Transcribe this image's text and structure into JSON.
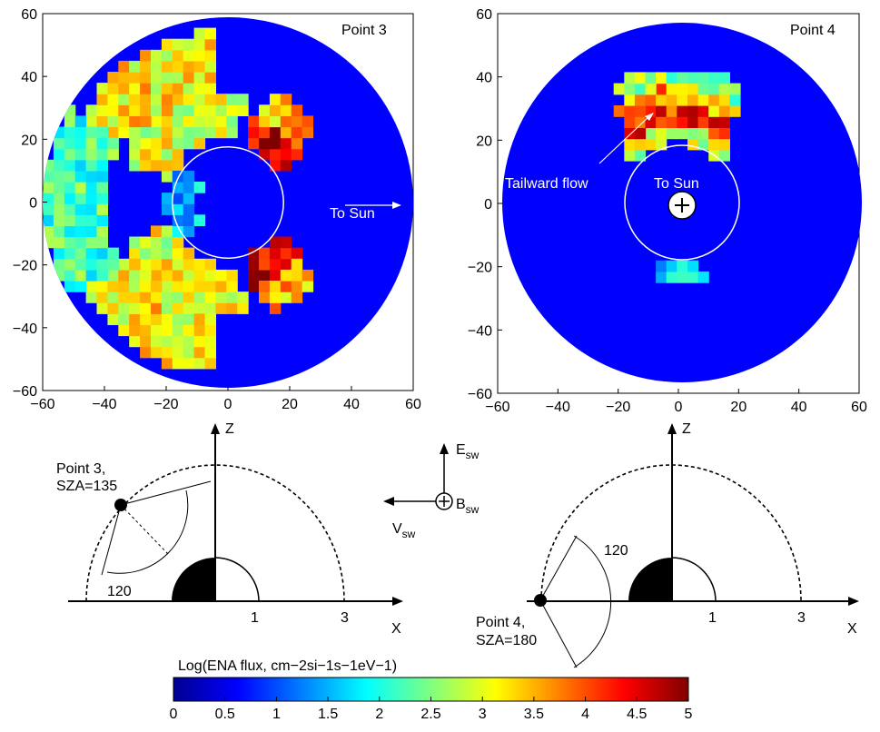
{
  "chart_data": [
    {
      "type": "heatmap",
      "panel_label": "Point 3",
      "x_ticks": [
        "−60",
        "−40",
        "−20",
        "0",
        "20",
        "40",
        "60"
      ],
      "y_ticks": [
        "60",
        "40",
        "20",
        "0",
        "−20",
        "−40",
        "−60"
      ],
      "xlim": [
        -60,
        60
      ],
      "ylim": [
        -60,
        60
      ],
      "boundary_circle_radius": 18,
      "disc_radius": 60,
      "annotations": [
        "To Sun"
      ],
      "bands": [
        {
          "r": [
            18,
            28
          ],
          "theta": [
            30,
            75
          ],
          "value": 4.5
        },
        {
          "r": [
            18,
            28
          ],
          "theta": [
            -75,
            -30
          ],
          "value": 4.5
        },
        {
          "r": [
            28,
            38
          ],
          "theta": [
            40,
            70
          ],
          "value": 3.5
        },
        {
          "r": [
            28,
            38
          ],
          "theta": [
            -70,
            -40
          ],
          "value": 3.5
        },
        {
          "r": [
            20,
            35
          ],
          "theta": [
            80,
            160
          ],
          "value": 3.0
        },
        {
          "r": [
            20,
            35
          ],
          "theta": [
            -160,
            -80
          ],
          "value": 3.0
        },
        {
          "r": [
            35,
            55
          ],
          "theta": [
            95,
            150
          ],
          "value": 3.2
        },
        {
          "r": [
            35,
            55
          ],
          "theta": [
            -150,
            -95
          ],
          "value": 3.2
        },
        {
          "r": [
            40,
            60
          ],
          "theta": [
            150,
            210
          ],
          "value": 2.2
        },
        {
          "r": [
            10,
            20
          ],
          "theta": [
            140,
            220
          ],
          "value": 1.5
        }
      ]
    },
    {
      "type": "heatmap",
      "panel_label": "Point 4",
      "x_ticks": [
        "−60",
        "−40",
        "−20",
        "0",
        "20",
        "40",
        "60"
      ],
      "y_ticks": [
        "60",
        "40",
        "20",
        "0",
        "−20",
        "−40",
        "−60"
      ],
      "xlim": [
        -60,
        60
      ],
      "ylim": [
        -60,
        60
      ],
      "boundary_circle_radius": 19,
      "disc_radius": 60,
      "annotations": [
        "Tailward flow",
        "To Sun"
      ],
      "bands": [
        {
          "r": [
            19,
            25
          ],
          "theta": [
            40,
            140
          ],
          "value": 2.8
        },
        {
          "r": [
            25,
            31
          ],
          "theta": [
            50,
            130
          ],
          "value": 4.2
        },
        {
          "r": [
            31,
            37
          ],
          "theta": [
            55,
            125
          ],
          "value": 3.6
        },
        {
          "r": [
            37,
            43
          ],
          "theta": [
            60,
            120
          ],
          "value": 2.6
        },
        {
          "r": [
            19,
            26
          ],
          "theta": [
            -110,
            -70
          ],
          "value": 1.8
        }
      ]
    }
  ],
  "geometry_left": {
    "point_label": "Point 3,",
    "sza_label": "SZA=135",
    "angle_label": "120",
    "axis_z": "Z",
    "axis_x": "X",
    "tick_1": "1",
    "tick_3": "3"
  },
  "geometry_right": {
    "point_label": "Point 4,",
    "sza_label": "SZA=180",
    "angle_label": "120",
    "axis_z": "Z",
    "axis_x": "X",
    "tick_1": "1",
    "tick_3": "3"
  },
  "vectors": {
    "e_label": "E",
    "e_sub": "sw",
    "b_label": "B",
    "b_sub": "sw",
    "v_label": "V",
    "v_sub": "sw"
  },
  "colorbar": {
    "title": "Log(ENA flux, cm−2si−1s−1eV−1)",
    "ticks": [
      "0",
      "0.5",
      "1",
      "1.5",
      "2",
      "2.5",
      "3",
      "3.5",
      "4",
      "4.5",
      "5"
    ],
    "range": [
      0,
      5
    ],
    "colormap": "jet"
  }
}
